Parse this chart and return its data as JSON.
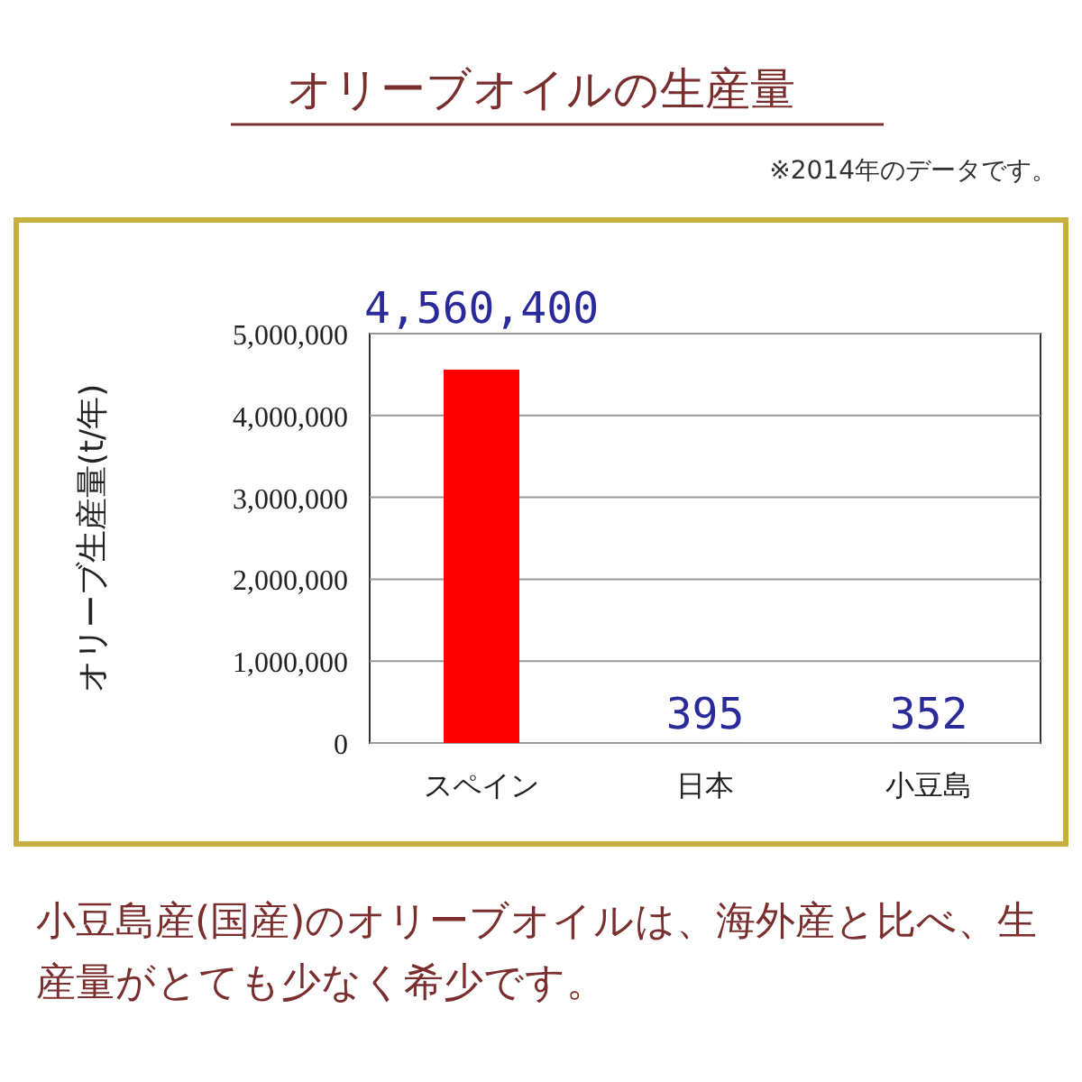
{
  "chart_data": {
    "type": "bar",
    "title": "オリーブオイルの生産量",
    "subtitle": "※2014年のデータです。",
    "ylabel": "オリーブ生産量(t/年)",
    "categories": [
      "スペイン",
      "日本",
      "小豆島"
    ],
    "values": [
      4560400,
      395,
      352
    ],
    "color": "#ff0000",
    "value_labels": [
      "4,560,400",
      "395",
      "352"
    ],
    "ylim": [
      0,
      5000000
    ],
    "yticks": [
      {
        "value": 0,
        "label": "0"
      },
      {
        "value": 1000000,
        "label": "1,000,000"
      },
      {
        "value": 2000000,
        "label": "2,000,000"
      },
      {
        "value": 3000000,
        "label": "3,000,000"
      },
      {
        "value": 4000000,
        "label": "4,000,000"
      },
      {
        "value": 5000000,
        "label": "5,000,000"
      }
    ],
    "grid": "y",
    "annotations": [
      "小豆島産(国産)のオリーブオイルは、海外産と比べ、生産量がとても少なく希少です。"
    ]
  }
}
